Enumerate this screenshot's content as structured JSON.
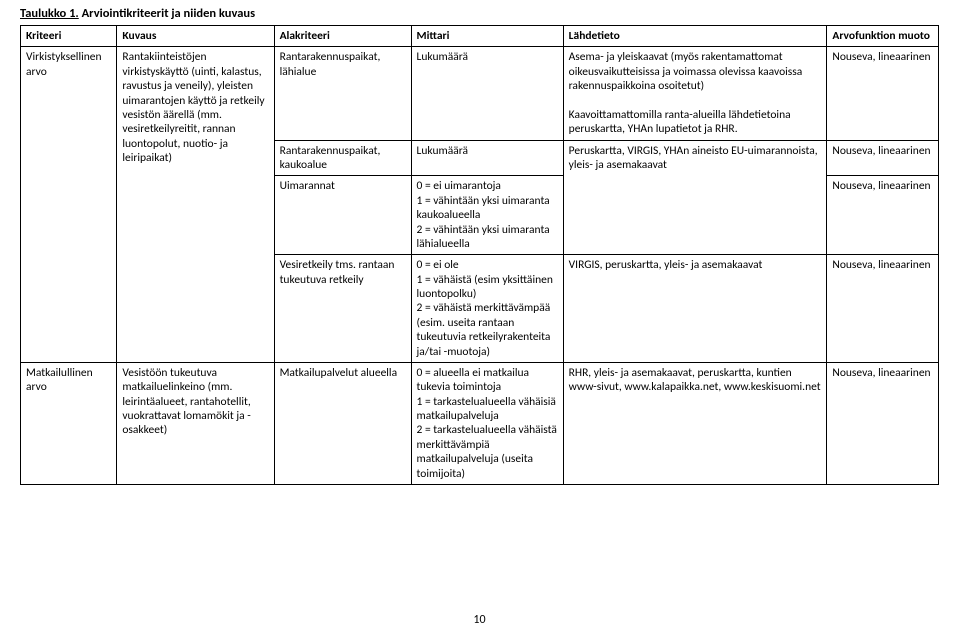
{
  "caption_label": "Taulukko 1.",
  "caption_rest": " Arviointikriteerit ja niiden kuvaus",
  "headers": {
    "c1": "Kriteeri",
    "c2": "Kuvaus",
    "c3": "Alakriteeri",
    "c4": "Mittari",
    "c5": "Lähdetieto",
    "c6": "Arvofunktion muoto"
  },
  "cells": {
    "r1_alakriteeri": "Rantarakennuspaikat, lähialue",
    "r1_mittari": "Lukumäärä",
    "r1_lahdetieto": "Asema- ja yleiskaavat (myös rakentamattomat oikeusvaikutteisissa ja voimassa olevissa kaavoissa rakennuspaikkoina osoitetut)\n\nKaavoittamattomilla ranta-alueilla lähdetietoina peruskartta, YHAn lupatietot ja RHR.",
    "r1_arvofunktio": "Nouseva, lineaarinen",
    "virk_kriteeri": "Virkistyksellinen arvo",
    "virk_kuvaus": "Rantakiinteistöjen virkistyskäyttö (uinti, kalastus, ravustus ja veneily), yleisten uimarantojen käyttö ja retkeily vesistön äärellä (mm. vesiretkeilyreitit, rannan luontopolut, nuotio- ja leiripaikat)",
    "r2_alakriteeri": "Rantarakennuspaikat, kaukoalue",
    "r2_mittari": "Lukumäärä",
    "r2_lahdetieto": "Peruskartta, VIRGIS, YHAn aineisto EU-uimarannoista, yleis- ja asemakaavat",
    "r2_arvofunktio": "Nouseva, lineaarinen",
    "r3_alakriteeri": "Uimarannat",
    "r3_mittari": "0 = ei uimarantoja\n1 = vähintään yksi uimaranta kaukoalueella\n2 = vähintään yksi uimaranta lähialueella",
    "r3_arvofunktio": "Nouseva, lineaarinen",
    "r4_alakriteeri": "Vesiretkeily tms. rantaan tukeutuva retkeily",
    "r4_mittari": "0 = ei ole\n1 = vähäistä (esim yksittäinen luontopolku)\n2 = vähäistä merkittävämpää (esim. useita rantaan tukeutuvia retkeilyrakenteita ja/tai -muotoja)",
    "r4_lahdetieto": "VIRGIS, peruskartta, yleis- ja asemakaavat",
    "r4_arvofunktio": "Nouseva, lineaarinen",
    "matk_kriteeri": "Matkailullinen arvo",
    "matk_kuvaus": "Vesistöön tukeutuva matkailuelinkeino (mm. leirintäalueet, rantahotellit, vuokrattavat lomamökit ja -osakkeet)",
    "r5_alakriteeri": "Matkailupalvelut alueella",
    "r5_mittari": "0 = alueella ei matkailua tukevia toimintoja\n1 = tarkastelualueella vähäisiä matkailupalveluja\n2 = tarkastelualueella vähäistä merkittävämpiä matkailupalveluja (useita toimijoita)",
    "r5_lahdetieto": "RHR, yleis- ja asemakaavat, peruskartta, kuntien www-sivut, www.kalapaikka.net, www.keskisuomi.net",
    "r5_arvofunktio": "Nouseva, lineaarinen"
  },
  "page_number": "10"
}
